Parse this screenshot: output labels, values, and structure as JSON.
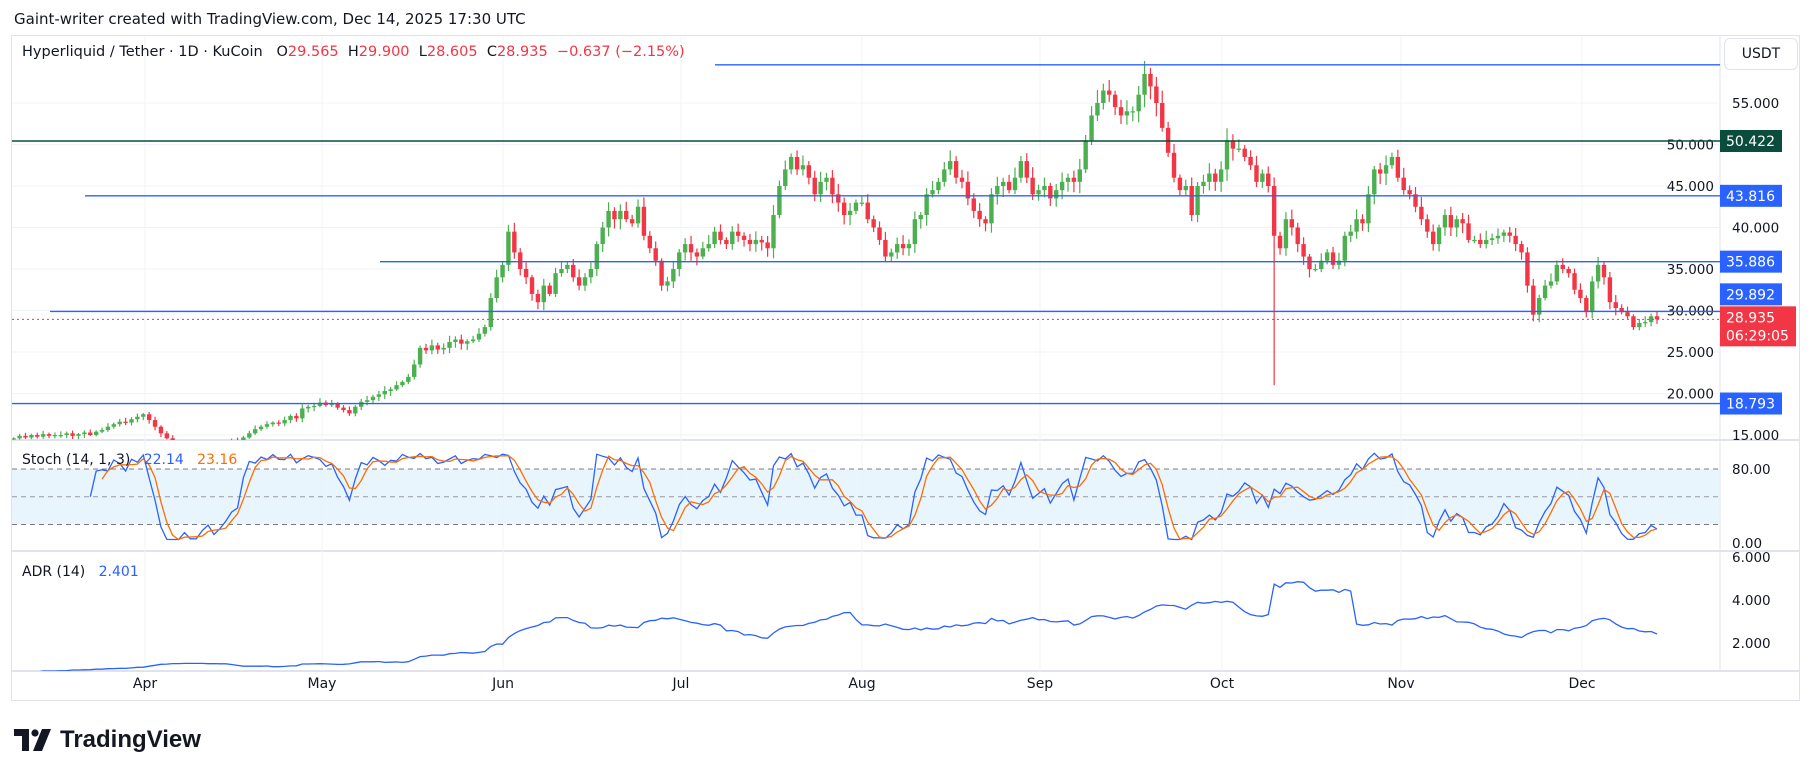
{
  "credit": "Gaint-writer created with TradingView.com, Dec 14, 2025 17:30 UTC",
  "legend": {
    "symbol": "Hyperliquid / Tether · 1D · KuCoin",
    "o_label": "O",
    "o": "29.565",
    "h_label": "H",
    "h": "29.900",
    "l_label": "L",
    "l": "28.605",
    "c_label": "C",
    "c": "28.935",
    "change": "−0.637 (−2.15%)"
  },
  "currency_button": "USDT",
  "price_axis": {
    "ticks": [
      "55.000",
      "50.000",
      "45.000",
      "40.000",
      "35.000",
      "30.000",
      "25.000",
      "20.000",
      "15.000"
    ],
    "levels": [
      {
        "value": 59.6,
        "label": "",
        "color": "#2962ff"
      },
      {
        "value": 50.422,
        "label": "50.422",
        "color": "#0b4d3c"
      },
      {
        "value": 43.816,
        "label": "43.816",
        "color": "#2962ff"
      },
      {
        "value": 35.886,
        "label": "35.886",
        "color": "#2962ff"
      },
      {
        "value": 29.892,
        "label": "29.892",
        "color": "#2962ff"
      },
      {
        "value": 18.793,
        "label": "18.793",
        "color": "#2962ff"
      }
    ],
    "last_price": "28.935",
    "countdown": "06:29:05"
  },
  "stoch": {
    "title": "Stoch (14, 1, 3)",
    "k": "22.14",
    "d": "23.16",
    "ticks": [
      "80.00",
      "0.00"
    ],
    "upper": 80,
    "middle": 50,
    "lower": 20
  },
  "adr": {
    "title": "ADR (14)",
    "value": "2.401",
    "ticks": [
      "6.000",
      "4.000",
      "2.000"
    ]
  },
  "time_axis": [
    "Apr",
    "May",
    "Jun",
    "Jul",
    "Aug",
    "Sep",
    "Oct",
    "Nov",
    "Dec"
  ],
  "colors": {
    "up": "#4caf50",
    "down": "#f23645",
    "k_line": "#2962ff",
    "d_line": "#ff6d00",
    "band": "#e3f2fd"
  },
  "brand": "TradingView",
  "chart_data": {
    "type": "candlestick",
    "title": "Hyperliquid / Tether · 1D · KuCoin",
    "y_range": [
      15,
      60
    ],
    "close": [
      14.6,
      14.9,
      14.7,
      15.0,
      14.8,
      15.1,
      14.9,
      15.0,
      15.0,
      15.2,
      14.9,
      15.1,
      15.3,
      15.0,
      15.4,
      15.6,
      16.0,
      16.3,
      16.6,
      16.5,
      16.9,
      17.2,
      17.5,
      16.8,
      16.0,
      15.2,
      14.6,
      14.0,
      13.6,
      13.9,
      13.4,
      13.1,
      13.5,
      13.8,
      13.3,
      13.6,
      14.0,
      14.3,
      14.1,
      14.7,
      15.2,
      15.7,
      16.0,
      16.3,
      16.5,
      16.4,
      16.8,
      17.3,
      17.0,
      18.2,
      18.4,
      18.5,
      18.9,
      18.6,
      18.8,
      18.3,
      18.0,
      17.6,
      18.4,
      19.0,
      19.2,
      19.6,
      19.9,
      20.3,
      20.5,
      21.0,
      21.4,
      22.0,
      23.5,
      25.5,
      25.2,
      25.8,
      25.3,
      25.5,
      26.2,
      26.5,
      26.0,
      26.3,
      26.5,
      27.2,
      28.0,
      31.5,
      34.0,
      35.5,
      39.5,
      37.0,
      35.0,
      34.0,
      32.0,
      31.0,
      33.0,
      32.0,
      34.5,
      35.0,
      35.5,
      34.0,
      33.0,
      34.0,
      35.0,
      38.0,
      40.0,
      42.0,
      41.0,
      42.0,
      41.0,
      40.5,
      42.5,
      39.0,
      37.5,
      36.0,
      33.0,
      33.5,
      35.0,
      37.0,
      38.0,
      37.0,
      36.5,
      37.5,
      38.0,
      39.5,
      38.5,
      38.0,
      39.5,
      39.0,
      38.5,
      38.0,
      38.5,
      38.2,
      37.5,
      41.5,
      45.0,
      47.0,
      48.5,
      47.0,
      47.5,
      46.0,
      44.0,
      45.5,
      46.0,
      44.0,
      43.0,
      41.5,
      42.0,
      43.0,
      43.0,
      41.0,
      40.0,
      38.5,
      36.5,
      37.0,
      38.0,
      37.5,
      38.0,
      41.0,
      41.5,
      44.0,
      44.5,
      45.5,
      47.0,
      48.0,
      46.0,
      45.5,
      43.5,
      42.0,
      41.0,
      40.5,
      44.0,
      45.0,
      45.5,
      44.5,
      46.0,
      48.0,
      46.0,
      44.0,
      44.5,
      45.0,
      43.5,
      44.5,
      45.5,
      46.0,
      45.5,
      47.0,
      50.5,
      53.5,
      55.0,
      56.5,
      56.0,
      54.5,
      53.5,
      54.0,
      54.0,
      56.0,
      58.5,
      57.0,
      55.0,
      52.0,
      49.0,
      46.0,
      44.5,
      45.0,
      41.5,
      45.0,
      45.5,
      46.5,
      45.5,
      47.0,
      50.5,
      49.5,
      49.5,
      48.5,
      47.5,
      45.5,
      46.5,
      45.0,
      39.0,
      37.5,
      41.0,
      40.0,
      38.0,
      36.5,
      35.0,
      35.0,
      36.0,
      37.0,
      35.5,
      36.0,
      39.0,
      39.5,
      41.0,
      40.5,
      44.0,
      47.0,
      46.5,
      47.5,
      48.5,
      46.0,
      44.5,
      44.0,
      42.5,
      41.0,
      39.5,
      38.0,
      40.0,
      41.5,
      40.0,
      41.0,
      40.5,
      38.5,
      38.5,
      38.0,
      38.5,
      38.7,
      39.0,
      39.4,
      39.0,
      38.0,
      37.0,
      33.0,
      29.5,
      31.5,
      33.0,
      33.5,
      35.5,
      35.0,
      34.5,
      32.5,
      31.5,
      29.8,
      33.5,
      35.5,
      34.0,
      31.0,
      30.3,
      29.8,
      29.3,
      28.0,
      28.5,
      28.6,
      29.3,
      28.935
    ],
    "notable_wicks": [
      {
        "after_peak_crash_low": 21.0
      }
    ]
  }
}
